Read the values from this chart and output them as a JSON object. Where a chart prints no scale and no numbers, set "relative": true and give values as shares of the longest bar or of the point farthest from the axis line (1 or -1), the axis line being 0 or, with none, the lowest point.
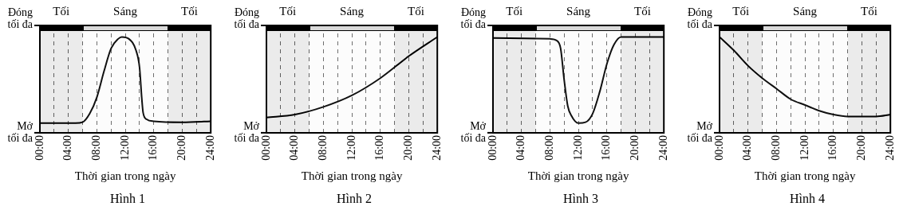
{
  "chart_data": [
    {
      "type": "line",
      "title": "Hình 1",
      "xlabel": "Thời gian trong ngày",
      "relative": true,
      "annotations": [
        "Đóng tối đa",
        "Mở tối đa"
      ],
      "x": [
        0,
        5,
        6,
        7,
        8,
        9,
        10,
        11,
        11.5,
        12.5,
        13.5,
        14,
        14.3,
        14.5,
        15,
        16,
        20,
        24
      ],
      "values": [
        0.1,
        0.1,
        0.11,
        0.2,
        0.37,
        0.64,
        0.88,
        0.98,
        1,
        0.98,
        0.86,
        0.68,
        0.37,
        0.21,
        0.14,
        0.12,
        0.11,
        0.12
      ],
      "color": "#000000",
      "xlim": [
        0,
        24
      ],
      "xticks": [
        {
          "value": 0,
          "label": "00:00"
        },
        {
          "value": 2,
          "label": null
        },
        {
          "value": 4,
          "label": "04:00"
        },
        {
          "value": 6,
          "label": null
        },
        {
          "value": 8,
          "label": "08:00"
        },
        {
          "value": 10,
          "label": null
        },
        {
          "value": 12,
          "label": "12:00"
        },
        {
          "value": 14,
          "label": null
        },
        {
          "value": 16,
          "label": "16:00"
        },
        {
          "value": 18,
          "label": null
        },
        {
          "value": 20,
          "label": "20:00"
        },
        {
          "value": 22,
          "label": null
        },
        {
          "value": 24,
          "label": "24:00"
        }
      ],
      "grid": "x",
      "bands": [
        {
          "axis": "x",
          "from": 0,
          "to": 6,
          "label": "Tối",
          "color": "#000000"
        },
        {
          "axis": "x",
          "from": 6,
          "to": 18,
          "label": "Sáng",
          "color": "#d9d9d9"
        },
        {
          "axis": "x",
          "from": 18,
          "to": 24,
          "label": "Tối",
          "color": "#000000"
        }
      ]
    },
    {
      "type": "line",
      "title": "Hình 2",
      "xlabel": "Thời gian trong ngày",
      "relative": true,
      "annotations": [
        "Đóng tối đa",
        "Mở tối đa"
      ],
      "x": [
        0,
        4,
        8,
        12,
        16,
        20,
        24
      ],
      "values": [
        0.16,
        0.19,
        0.27,
        0.39,
        0.57,
        0.8,
        1
      ],
      "color": "#000000",
      "xlim": [
        0,
        24
      ],
      "xticks": [
        {
          "value": 0,
          "label": "00:00"
        },
        {
          "value": 2,
          "label": null
        },
        {
          "value": 4,
          "label": "04:00"
        },
        {
          "value": 6,
          "label": null
        },
        {
          "value": 8,
          "label": "08:00"
        },
        {
          "value": 10,
          "label": null
        },
        {
          "value": 12,
          "label": "12:00"
        },
        {
          "value": 14,
          "label": null
        },
        {
          "value": 16,
          "label": "16:00"
        },
        {
          "value": 18,
          "label": null
        },
        {
          "value": 20,
          "label": "20:00"
        },
        {
          "value": 22,
          "label": null
        },
        {
          "value": 24,
          "label": "24:00"
        }
      ],
      "grid": "x",
      "bands": [
        {
          "axis": "x",
          "from": 0,
          "to": 6,
          "label": "Tối",
          "color": "#000000"
        },
        {
          "axis": "x",
          "from": 6,
          "to": 18,
          "label": "Sáng",
          "color": "#d9d9d9"
        },
        {
          "axis": "x",
          "from": 18,
          "to": 24,
          "label": "Tối",
          "color": "#000000"
        }
      ]
    },
    {
      "type": "line",
      "title": "Hình 3",
      "xlabel": "Thời gian trong ngày",
      "relative": true,
      "annotations": [
        "Đóng tối đa",
        "Mở tối đa"
      ],
      "x": [
        0,
        8,
        9,
        9.5,
        10,
        10.5,
        11,
        12,
        13,
        14,
        15,
        16,
        17,
        18,
        20,
        24
      ],
      "values": [
        0.99,
        0.98,
        0.96,
        0.88,
        0.55,
        0.28,
        0.18,
        0.1,
        0.11,
        0.2,
        0.43,
        0.72,
        0.92,
        1,
        1,
        1
      ],
      "color": "#000000",
      "xlim": [
        0,
        24
      ],
      "xticks": [
        {
          "value": 0,
          "label": "00:00"
        },
        {
          "value": 2,
          "label": null
        },
        {
          "value": 4,
          "label": "04:00"
        },
        {
          "value": 6,
          "label": null
        },
        {
          "value": 8,
          "label": "08:00"
        },
        {
          "value": 10,
          "label": null
        },
        {
          "value": 12,
          "label": "12:00"
        },
        {
          "value": 14,
          "label": null
        },
        {
          "value": 16,
          "label": "16:00"
        },
        {
          "value": 18,
          "label": null
        },
        {
          "value": 20,
          "label": "20:00"
        },
        {
          "value": 22,
          "label": null
        },
        {
          "value": 24,
          "label": "24:00"
        }
      ],
      "grid": "x",
      "bands": [
        {
          "axis": "x",
          "from": 0,
          "to": 6,
          "label": "Tối",
          "color": "#000000"
        },
        {
          "axis": "x",
          "from": 6,
          "to": 18,
          "label": "Sáng",
          "color": "#d9d9d9"
        },
        {
          "axis": "x",
          "from": 18,
          "to": 24,
          "label": "Tối",
          "color": "#000000"
        }
      ]
    },
    {
      "type": "line",
      "title": "Hình 4",
      "xlabel": "Thời gian trong ngày",
      "relative": true,
      "annotations": [
        "Đóng tối đa",
        "Mở tối đa"
      ],
      "x": [
        0,
        2,
        4,
        6,
        8,
        10,
        12,
        14,
        16,
        18,
        20,
        22,
        24
      ],
      "values": [
        1,
        0.86,
        0.7,
        0.57,
        0.46,
        0.35,
        0.29,
        0.23,
        0.19,
        0.17,
        0.17,
        0.17,
        0.19
      ],
      "color": "#000000",
      "xlim": [
        0,
        24
      ],
      "xticks": [
        {
          "value": 0,
          "label": "00:00"
        },
        {
          "value": 2,
          "label": null
        },
        {
          "value": 4,
          "label": "04:00"
        },
        {
          "value": 6,
          "label": null
        },
        {
          "value": 8,
          "label": "08:00"
        },
        {
          "value": 10,
          "label": null
        },
        {
          "value": 12,
          "label": "12:00"
        },
        {
          "value": 14,
          "label": null
        },
        {
          "value": 16,
          "label": "16:00"
        },
        {
          "value": 18,
          "label": null
        },
        {
          "value": 20,
          "label": "20:00"
        },
        {
          "value": 22,
          "label": null
        },
        {
          "value": 24,
          "label": "24:00"
        }
      ],
      "grid": "x",
      "bands": [
        {
          "axis": "x",
          "from": 0,
          "to": 6,
          "label": "Tối",
          "color": "#000000"
        },
        {
          "axis": "x",
          "from": 6,
          "to": 18,
          "label": "Sáng",
          "color": "#d9d9d9"
        },
        {
          "axis": "x",
          "from": 18,
          "to": 24,
          "label": "Tối",
          "color": "#000000"
        }
      ]
    }
  ]
}
